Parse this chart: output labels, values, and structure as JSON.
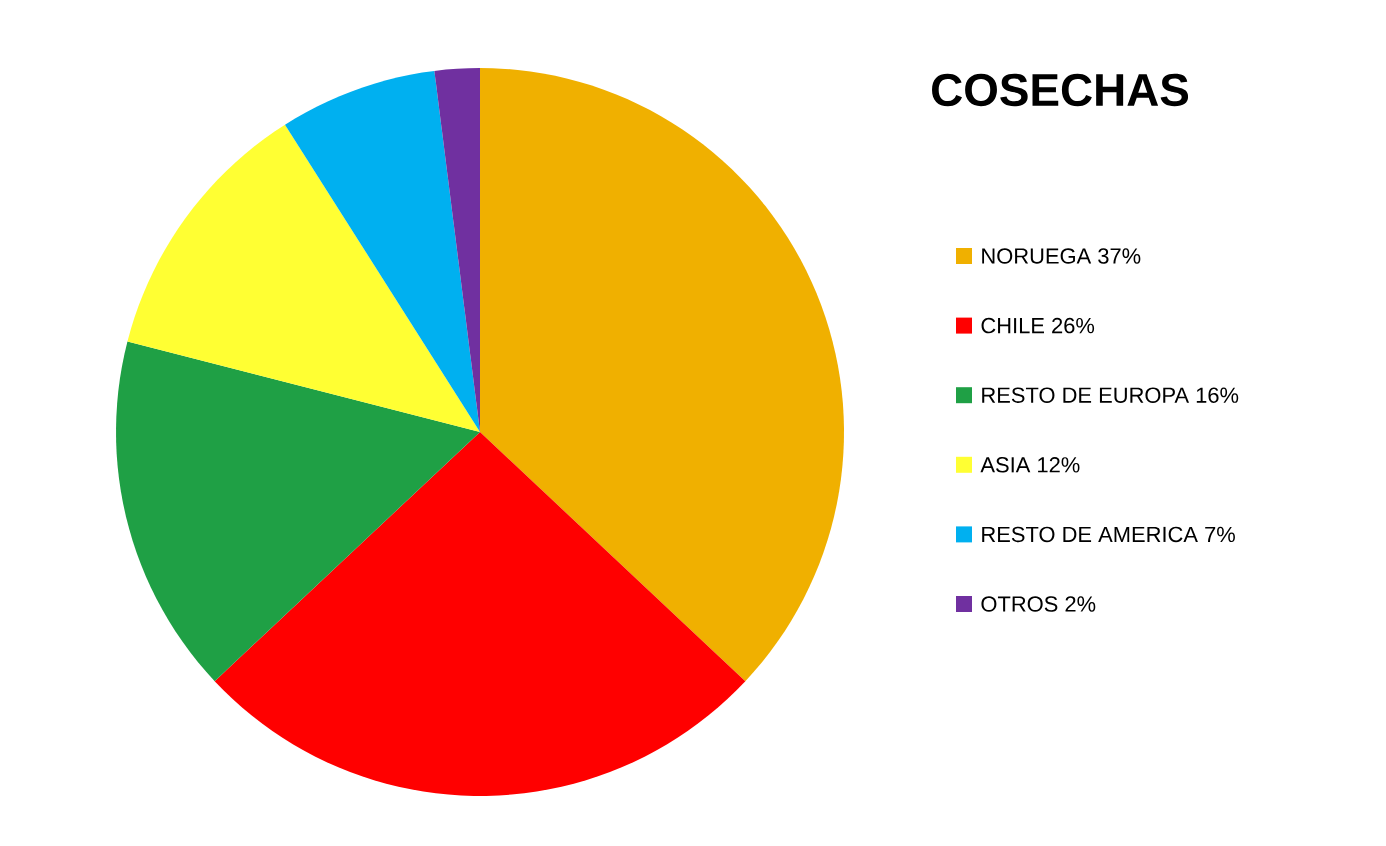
{
  "chart_data": {
    "type": "pie",
    "title": "COSECHAS",
    "legend": "right",
    "categories": [
      "NORUEGA 37%",
      "CHILE 26%",
      "RESTO DE EUROPA 16%",
      "ASIA 12%",
      "RESTO DE AMERICA 7%",
      "OTROS 2%"
    ],
    "values": [
      37,
      26,
      16,
      12,
      7,
      2
    ],
    "colors": [
      "#f0b000",
      "#ff0000",
      "#1fa045",
      "#ffff33",
      "#00b0f0",
      "#7030a0"
    ]
  }
}
